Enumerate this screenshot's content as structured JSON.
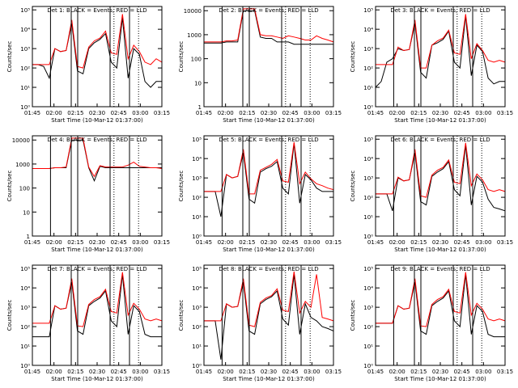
{
  "figure": {
    "x_tick_labels": [
      "01:45",
      "02:00",
      "02:15",
      "02:30",
      "02:45",
      "03:00",
      "03:15"
    ],
    "x_axis_label": "Start Time (10-Mar-12 01:37:00)",
    "y_axis_label": "Counts/sec",
    "legend_suffix": "BLACK = Events, RED = LLD",
    "colors": {
      "events": "#000000",
      "lld": "#ff0000",
      "axes": "#000000"
    }
  },
  "chart_data": [
    {
      "type": "line",
      "title": "Det 1: BLACK = Events, RED = LLD",
      "ylog": true,
      "ylim": [
        1,
        150000
      ],
      "yticks": [
        1,
        10,
        100,
        1000,
        10000,
        100000
      ],
      "ytick_labels": [
        "10⁰",
        "10¹",
        "10²",
        "10³",
        "10⁴",
        "10⁵"
      ],
      "xlim": [
        0,
        100
      ],
      "solid_vlines": [
        14,
        30,
        35,
        60,
        75
      ],
      "dotted_vlines": [
        63,
        82
      ],
      "series": [
        {
          "name": "Events",
          "values": [
            150,
            150,
            120,
            30,
            1000,
            700,
            800,
            20000,
            70,
            50,
            1000,
            2000,
            3000,
            6000,
            200,
            100,
            40000,
            30,
            1000,
            500,
            20,
            10,
            20,
            20
          ]
        },
        {
          "name": "LLD",
          "values": [
            150,
            150,
            150,
            150,
            1000,
            700,
            800,
            30000,
            120,
            100,
            1200,
            2500,
            3500,
            8000,
            600,
            500,
            60000,
            300,
            1500,
            700,
            200,
            150,
            300,
            200
          ]
        }
      ]
    },
    {
      "type": "line",
      "title": "Det 2: BLACK = Events, RED = LLD",
      "ylog": true,
      "ylim": [
        1,
        15000
      ],
      "yticks": [
        1,
        10,
        100,
        1000,
        10000
      ],
      "ytick_labels": [
        "1",
        "10",
        "100",
        "1000",
        "10000"
      ],
      "xlim": [
        0,
        100
      ],
      "solid_vlines": [
        14,
        30,
        35,
        60,
        75
      ],
      "dotted_vlines": [
        63,
        82
      ],
      "series": [
        {
          "name": "Events",
          "values": [
            450,
            450,
            450,
            450,
            500,
            500,
            500,
            10000,
            10000,
            10000,
            800,
            700,
            700,
            500,
            500,
            500,
            400,
            400,
            400,
            400,
            400,
            400,
            400,
            400
          ]
        },
        {
          "name": "LLD",
          "values": [
            500,
            500,
            500,
            500,
            550,
            550,
            600,
            12000,
            12000,
            12000,
            1000,
            900,
            900,
            800,
            700,
            900,
            800,
            700,
            600,
            600,
            900,
            700,
            600,
            500
          ]
        }
      ]
    },
    {
      "type": "line",
      "title": "Det 3: BLACK = Events, RED = LLD",
      "ylog": true,
      "ylim": [
        1,
        150000
      ],
      "yticks": [
        1,
        10,
        100,
        1000,
        10000,
        100000
      ],
      "ytick_labels": [
        "10⁰",
        "10¹",
        "10²",
        "10³",
        "10⁴",
        "10⁵"
      ],
      "xlim": [
        0,
        100
      ],
      "solid_vlines": [
        14,
        30,
        35,
        60,
        75
      ],
      "dotted_vlines": [
        63,
        82
      ],
      "series": [
        {
          "name": "Events",
          "values": [
            10,
            20,
            200,
            300,
            1000,
            800,
            900,
            20000,
            60,
            30,
            1500,
            2000,
            3000,
            8000,
            200,
            100,
            50000,
            40,
            1500,
            700,
            30,
            15,
            20,
            20
          ]
        },
        {
          "name": "LLD",
          "values": [
            150,
            150,
            150,
            150,
            1200,
            800,
            900,
            30000,
            100,
            100,
            1500,
            2500,
            3500,
            9000,
            600,
            500,
            60000,
            300,
            1800,
            800,
            250,
            200,
            250,
            200
          ]
        }
      ]
    },
    {
      "type": "line",
      "title": "Det 4: BLACK = Events, RED = LLD",
      "ylog": true,
      "ylim": [
        1,
        15000
      ],
      "yticks": [
        1,
        10,
        100,
        1000,
        10000
      ],
      "ytick_labels": [
        "1",
        "10",
        "100",
        "1000",
        "10000"
      ],
      "xlim": [
        0,
        100
      ],
      "solid_vlines": [
        14,
        30,
        35,
        60,
        75
      ],
      "dotted_vlines": [
        63,
        82
      ],
      "series": [
        {
          "name": "Events",
          "values": [
            650,
            650,
            650,
            650,
            700,
            700,
            700,
            10000,
            10000,
            10000,
            700,
            200,
            800,
            700,
            700,
            700,
            700,
            700,
            700,
            700,
            700,
            700,
            700,
            700
          ]
        },
        {
          "name": "LLD",
          "values": [
            650,
            650,
            650,
            650,
            700,
            700,
            750,
            12000,
            12000,
            12000,
            750,
            300,
            850,
            750,
            750,
            750,
            750,
            900,
            1200,
            800,
            750,
            700,
            700,
            650
          ]
        }
      ]
    },
    {
      "type": "line",
      "title": "Det 5: BLACK = Events, RED = LLD",
      "ylog": true,
      "ylim": [
        1,
        150000
      ],
      "yticks": [
        1,
        10,
        100,
        1000,
        10000,
        100000
      ],
      "ytick_labels": [
        "10⁰",
        "10¹",
        "10²",
        "10³",
        "10⁴",
        "10⁵"
      ],
      "xlim": [
        0,
        100
      ],
      "solid_vlines": [
        14,
        30,
        35,
        60,
        75
      ],
      "dotted_vlines": [
        63,
        82
      ],
      "series": [
        {
          "name": "Events",
          "values": [
            200,
            200,
            200,
            10,
            1500,
            1000,
            1200,
            20000,
            80,
            50,
            2000,
            3000,
            4000,
            7000,
            300,
            150,
            60000,
            50,
            1500,
            800,
            300,
            200,
            200,
            200
          ]
        },
        {
          "name": "LLD",
          "values": [
            200,
            200,
            200,
            200,
            1500,
            1000,
            1200,
            30000,
            150,
            150,
            2500,
            3500,
            5000,
            9000,
            700,
            600,
            70000,
            500,
            2000,
            900,
            500,
            400,
            300,
            250
          ]
        }
      ]
    },
    {
      "type": "line",
      "title": "Det 6: BLACK = Events, RED = LLD",
      "ylog": true,
      "ylim": [
        1,
        150000
      ],
      "yticks": [
        1,
        10,
        100,
        1000,
        10000,
        100000
      ],
      "ytick_labels": [
        "10⁰",
        "10¹",
        "10²",
        "10³",
        "10⁴",
        "10⁵"
      ],
      "xlim": [
        0,
        100
      ],
      "solid_vlines": [
        14,
        30,
        35,
        60,
        75
      ],
      "dotted_vlines": [
        63,
        82
      ],
      "series": [
        {
          "name": "Events",
          "values": [
            150,
            150,
            150,
            20,
            1000,
            700,
            800,
            20000,
            60,
            40,
            1200,
            2000,
            3000,
            7000,
            250,
            120,
            50000,
            40,
            1200,
            600,
            80,
            30,
            25,
            20
          ]
        },
        {
          "name": "LLD",
          "values": [
            150,
            150,
            150,
            150,
            1100,
            700,
            800,
            30000,
            120,
            100,
            1400,
            2500,
            3500,
            8500,
            600,
            500,
            65000,
            400,
            1600,
            800,
            250,
            200,
            250,
            200
          ]
        }
      ]
    },
    {
      "type": "line",
      "title": "Det 7: BLACK = Events, RED = LLD",
      "ylog": true,
      "ylim": [
        1,
        150000
      ],
      "yticks": [
        1,
        10,
        100,
        1000,
        10000,
        100000
      ],
      "ytick_labels": [
        "10⁰",
        "10¹",
        "10²",
        "10³",
        "10⁴",
        "10⁵"
      ],
      "xlim": [
        0,
        100
      ],
      "solid_vlines": [
        14,
        30,
        35,
        60,
        75
      ],
      "dotted_vlines": [
        63,
        82
      ],
      "series": [
        {
          "name": "Events",
          "values": [
            30,
            30,
            30,
            30,
            1200,
            800,
            900,
            20000,
            60,
            40,
            1200,
            2000,
            3000,
            7000,
            200,
            100,
            50000,
            40,
            1200,
            600,
            40,
            30,
            30,
            30
          ]
        },
        {
          "name": "LLD",
          "values": [
            150,
            150,
            150,
            150,
            1200,
            800,
            900,
            30000,
            110,
            100,
            1400,
            2500,
            3500,
            8500,
            600,
            500,
            65000,
            400,
            1600,
            800,
            250,
            200,
            250,
            200
          ]
        }
      ]
    },
    {
      "type": "line",
      "title": "Det 8: BLACK = Events, RED = LLD",
      "ylog": true,
      "ylim": [
        1,
        150000
      ],
      "yticks": [
        1,
        10,
        100,
        1000,
        10000,
        100000
      ],
      "ytick_labels": [
        "10⁰",
        "10¹",
        "10²",
        "10³",
        "10⁴",
        "10⁵"
      ],
      "xlim": [
        0,
        100
      ],
      "solid_vlines": [
        14,
        30,
        35,
        60,
        75
      ],
      "dotted_vlines": [
        63,
        82
      ],
      "series": [
        {
          "name": "Events",
          "values": [
            200,
            200,
            200,
            2,
            1500,
            1000,
            1100,
            20000,
            60,
            40,
            1500,
            2500,
            3500,
            7000,
            250,
            120,
            50000,
            40,
            1500,
            300,
            200,
            100,
            80,
            60
          ]
        },
        {
          "name": "LLD",
          "values": [
            200,
            200,
            200,
            200,
            1500,
            1000,
            1100,
            30000,
            120,
            100,
            1800,
            3000,
            4000,
            9000,
            700,
            600,
            70000,
            500,
            2000,
            1000,
            50000,
            300,
            250,
            200
          ]
        }
      ]
    },
    {
      "type": "line",
      "title": "Det 9: BLACK = Events, RED = LLD",
      "ylog": true,
      "ylim": [
        1,
        150000
      ],
      "yticks": [
        1,
        10,
        100,
        1000,
        10000,
        100000
      ],
      "ytick_labels": [
        "10⁰",
        "10¹",
        "10²",
        "10³",
        "10⁴",
        "10⁵"
      ],
      "xlim": [
        0,
        100
      ],
      "solid_vlines": [
        14,
        30,
        35,
        60,
        75
      ],
      "dotted_vlines": [
        63,
        82
      ],
      "series": [
        {
          "name": "Events",
          "values": [
            150,
            150,
            150,
            150,
            1200,
            800,
            900,
            20000,
            60,
            40,
            1200,
            2000,
            3000,
            7000,
            200,
            100,
            50000,
            40,
            1200,
            600,
            40,
            30,
            30,
            30
          ]
        },
        {
          "name": "LLD",
          "values": [
            150,
            150,
            150,
            150,
            1200,
            800,
            900,
            30000,
            110,
            100,
            1400,
            2500,
            3500,
            8500,
            600,
            500,
            65000,
            400,
            1600,
            800,
            250,
            200,
            250,
            200
          ]
        }
      ]
    }
  ]
}
